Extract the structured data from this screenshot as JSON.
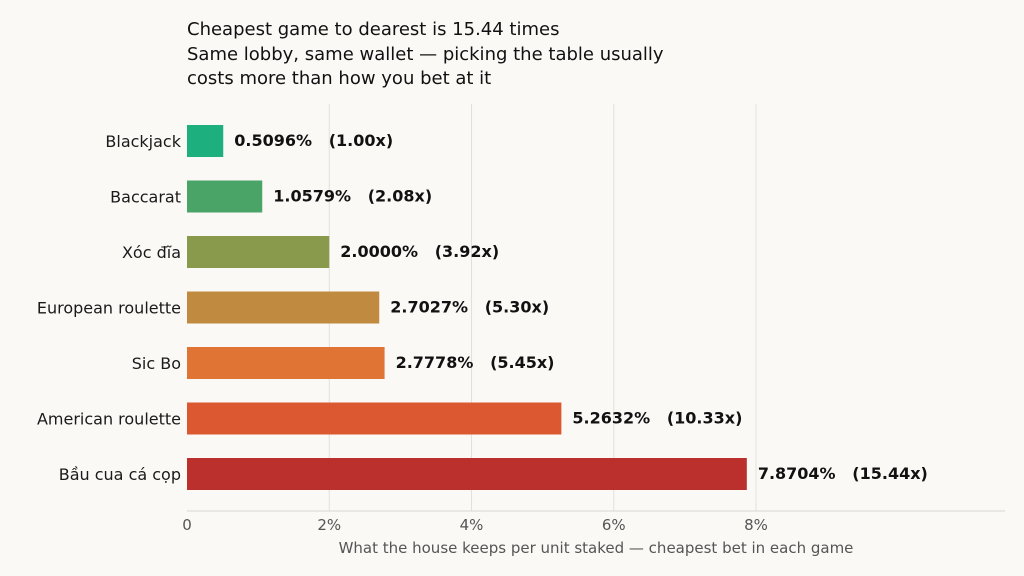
{
  "chart_data": {
    "type": "bar",
    "orientation": "horizontal",
    "title_lines": [
      "Cheapest game to dearest is 15.44 times",
      "Same lobby, same wallet — picking the table usually",
      "costs more than how you bet at it"
    ],
    "xlabel": "What the house keeps per unit staked — cheapest bet in each game",
    "ylabel": "",
    "xlim": [
      0,
      11.5
    ],
    "xticks": [
      0,
      2,
      4,
      6,
      8
    ],
    "xtick_labels": [
      "0",
      "2%",
      "4%",
      "6%",
      "8%"
    ],
    "grid": true,
    "categories": [
      "Blackjack",
      "Baccarat",
      "Xóc đĩa",
      "European roulette",
      "Sic Bo",
      "American roulette",
      "Bầu cua cá cọp"
    ],
    "values": [
      0.5096,
      1.0579,
      2.0,
      2.7027,
      2.7778,
      5.2632,
      7.8704
    ],
    "data_labels": [
      "0.5096%   (1.00x)",
      "1.0579%   (2.08x)",
      "2.0000%   (3.92x)",
      "2.7027%   (5.30x)",
      "2.7778%   (5.45x)",
      "5.2632%   (10.33x)",
      "7.8704%   (15.44x)"
    ],
    "colors": [
      "#1db07e",
      "#4aa468",
      "#8a9a4c",
      "#c08a40",
      "#e07434",
      "#dc5830",
      "#bb302c"
    ]
  }
}
